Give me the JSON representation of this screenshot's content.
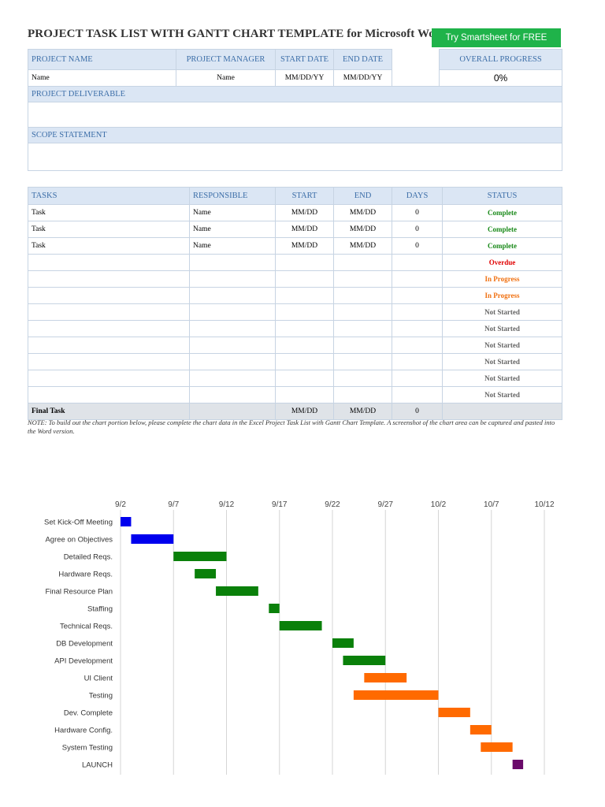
{
  "header": {
    "title": "PROJECT TASK LIST WITH GANTT CHART TEMPLATE for Microsoft Word",
    "cta": "Try Smartsheet for FREE"
  },
  "project": {
    "headers": {
      "name": "PROJECT NAME",
      "manager": "PROJECT MANAGER",
      "start": "START DATE",
      "end": "END DATE",
      "progress": "OVERALL PROGRESS"
    },
    "values": {
      "name": "Name",
      "manager": "Name",
      "start": "MM/DD/YY",
      "end": "MM/DD/YY",
      "progress": "0%"
    },
    "deliverable_label": "PROJECT DELIVERABLE",
    "scope_label": "SCOPE STATEMENT"
  },
  "tasks": {
    "headers": {
      "task": "TASKS",
      "responsible": "RESPONSIBLE",
      "start": "START",
      "end": "END",
      "days": "DAYS",
      "status": "STATUS"
    },
    "rows": [
      {
        "task": "Task",
        "responsible": "Name",
        "start": "MM/DD",
        "end": "MM/DD",
        "days": "0",
        "status": "Complete"
      },
      {
        "task": "Task",
        "responsible": "Name",
        "start": "MM/DD",
        "end": "MM/DD",
        "days": "0",
        "status": "Complete"
      },
      {
        "task": "Task",
        "responsible": "Name",
        "start": "MM/DD",
        "end": "MM/DD",
        "days": "0",
        "status": "Complete"
      },
      {
        "task": "",
        "responsible": "",
        "start": "",
        "end": "",
        "days": "",
        "status": "Overdue"
      },
      {
        "task": "",
        "responsible": "",
        "start": "",
        "end": "",
        "days": "",
        "status": "In Progress"
      },
      {
        "task": "",
        "responsible": "",
        "start": "",
        "end": "",
        "days": "",
        "status": "In Progress"
      },
      {
        "task": "",
        "responsible": "",
        "start": "",
        "end": "",
        "days": "",
        "status": "Not Started"
      },
      {
        "task": "",
        "responsible": "",
        "start": "",
        "end": "",
        "days": "",
        "status": "Not Started"
      },
      {
        "task": "",
        "responsible": "",
        "start": "",
        "end": "",
        "days": "",
        "status": "Not Started"
      },
      {
        "task": "",
        "responsible": "",
        "start": "",
        "end": "",
        "days": "",
        "status": "Not Started"
      },
      {
        "task": "",
        "responsible": "",
        "start": "",
        "end": "",
        "days": "",
        "status": "Not Started"
      },
      {
        "task": "",
        "responsible": "",
        "start": "",
        "end": "",
        "days": "",
        "status": "Not Started"
      }
    ],
    "final": {
      "task": "Final Task",
      "start": "MM/DD",
      "end": "MM/DD",
      "days": "0"
    }
  },
  "status_colors": {
    "Complete": "#1a8a1a",
    "Overdue": "#e00000",
    "In Progress": "#f07010",
    "Not Started": "#666666"
  },
  "note": "NOTE: To build out the chart portion below, please complete the chart data in the Excel Project Task List with Gantt Chart Template. A screenshot of the chart area can be captured and pasted into the Word version.",
  "chart_data": {
    "type": "gantt",
    "x_ticks": [
      "9/2",
      "9/7",
      "9/12",
      "9/17",
      "9/22",
      "9/27",
      "10/2",
      "10/7",
      "10/12"
    ],
    "x_range_days": [
      0,
      40
    ],
    "grid": true,
    "tasks": [
      {
        "name": "Set Kick-Off Meeting",
        "start": "9/2",
        "end": "9/3",
        "color": "#0000ee"
      },
      {
        "name": "Agree on Objectives",
        "start": "9/3",
        "end": "9/7",
        "color": "#0000ee"
      },
      {
        "name": "Detailed Reqs.",
        "start": "9/7",
        "end": "9/12",
        "color": "#0a800a"
      },
      {
        "name": "Hardware Reqs.",
        "start": "9/9",
        "end": "9/11",
        "color": "#0a800a"
      },
      {
        "name": "Final Resource Plan",
        "start": "9/11",
        "end": "9/15",
        "color": "#0a800a"
      },
      {
        "name": "Staffing",
        "start": "9/16",
        "end": "9/17",
        "color": "#0a800a"
      },
      {
        "name": "Technical Reqs.",
        "start": "9/17",
        "end": "9/21",
        "color": "#0a800a"
      },
      {
        "name": "DB Development",
        "start": "9/22",
        "end": "9/24",
        "color": "#0a800a"
      },
      {
        "name": "API Development",
        "start": "9/23",
        "end": "9/27",
        "color": "#0a800a"
      },
      {
        "name": "UI Client",
        "start": "9/25",
        "end": "9/29",
        "color": "#ff6a00"
      },
      {
        "name": "Testing",
        "start": "9/24",
        "end": "10/2",
        "color": "#ff6a00"
      },
      {
        "name": "Dev. Complete",
        "start": "10/2",
        "end": "10/5",
        "color": "#ff6a00"
      },
      {
        "name": "Hardware Config.",
        "start": "10/5",
        "end": "10/7",
        "color": "#ff6a00"
      },
      {
        "name": "System Testing",
        "start": "10/6",
        "end": "10/9",
        "color": "#ff6a00"
      },
      {
        "name": "LAUNCH",
        "start": "10/9",
        "end": "10/10",
        "color": "#6a0a6a"
      }
    ]
  }
}
